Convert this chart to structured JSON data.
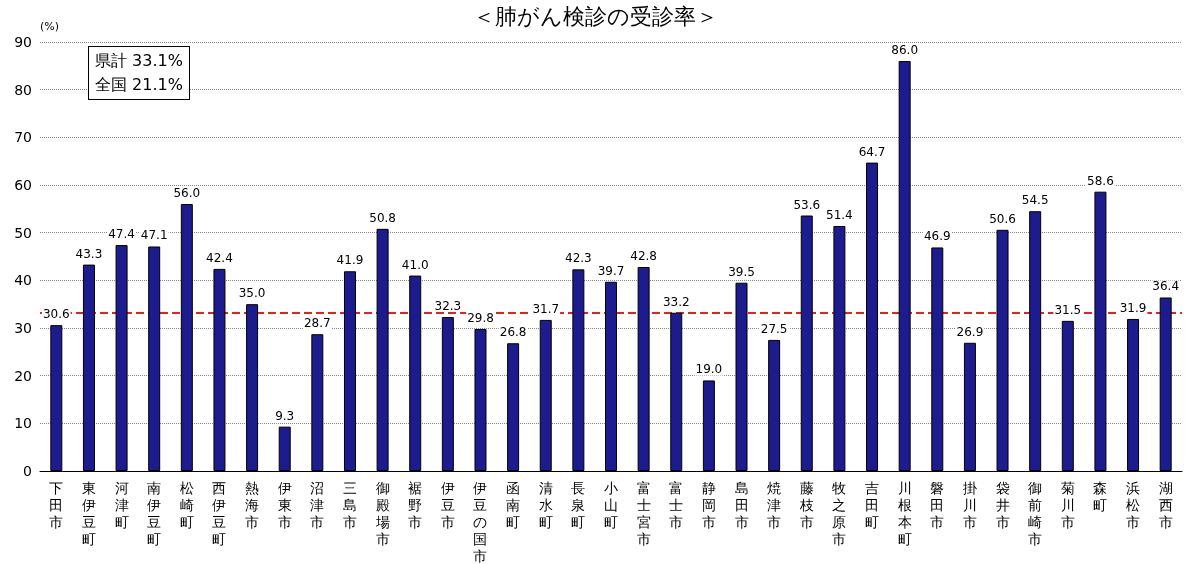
{
  "chart_data": {
    "type": "bar",
    "title": "＜肺がん検診の受診率＞",
    "ylabel": "(%)",
    "categories": [
      "下田市",
      "東伊豆町",
      "河津町",
      "南伊豆町",
      "松崎町",
      "西伊豆町",
      "熱海市",
      "伊東市",
      "沼津市",
      "三島市",
      "御殿場市",
      "裾野市",
      "伊豆市",
      "伊豆の国市",
      "函南町",
      "清水町",
      "長泉町",
      "小山町",
      "富士宮市",
      "富士市",
      "静岡市",
      "島田市",
      "焼津市",
      "藤枝市",
      "牧之原市",
      "吉田町",
      "川根本町",
      "磐田市",
      "掛川市",
      "袋井市",
      "御前崎市",
      "菊川市",
      "森町",
      "浜松市",
      "湖西市"
    ],
    "values": [
      30.6,
      43.3,
      47.4,
      47.1,
      56.0,
      42.4,
      35.0,
      9.3,
      28.7,
      41.9,
      50.8,
      41.0,
      32.3,
      29.8,
      26.8,
      31.7,
      42.3,
      39.7,
      42.8,
      33.2,
      19.0,
      39.5,
      27.5,
      53.6,
      51.4,
      64.7,
      86.0,
      46.9,
      26.9,
      50.6,
      54.5,
      31.5,
      58.6,
      31.9,
      36.4
    ],
    "color": "#1c1c8e",
    "value_labels": [
      "30.6",
      "43.3",
      "47.4",
      "47.1",
      "56.0",
      "42.4",
      "35.0",
      "9.3",
      "28.7",
      "41.9",
      "50.8",
      "41.0",
      "32.3",
      "29.8",
      "26.8",
      "31.7",
      "42.3",
      "39.7",
      "42.8",
      "33.2",
      "19.0",
      "39.5",
      "27.5",
      "53.6",
      "51.4",
      "64.7",
      "86.0",
      "46.9",
      "26.9",
      "50.6",
      "54.5",
      "31.5",
      "58.6",
      "31.9",
      "36.4"
    ],
    "ylim": [
      0,
      90
    ],
    "yticks": [
      0,
      10,
      20,
      30,
      40,
      50,
      60,
      70,
      80,
      90
    ],
    "grid": "y",
    "ref_lines": [
      {
        "axis": "y",
        "value": 33.1,
        "label": null,
        "color": "#e8201c",
        "line_style": "dashed"
      }
    ],
    "annotations": [
      "県計 33.1%",
      "全国 21.1%"
    ]
  }
}
